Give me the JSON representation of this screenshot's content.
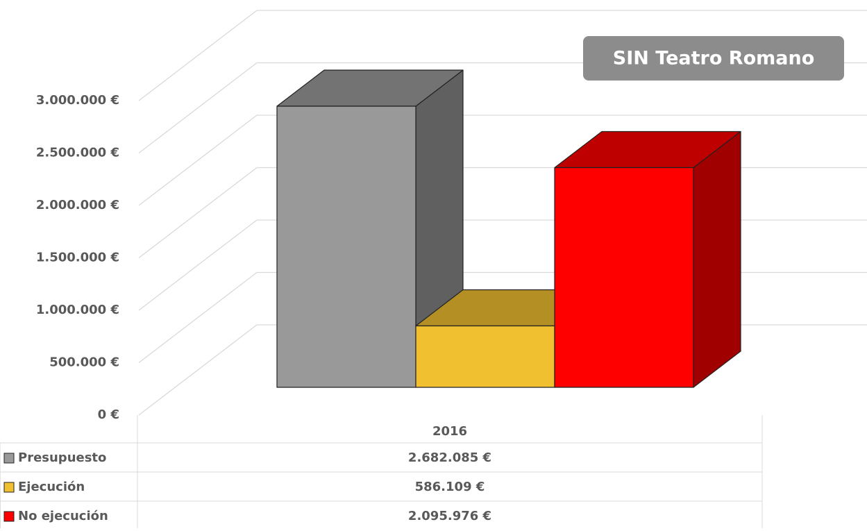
{
  "chart_data": {
    "type": "bar3d",
    "annotation": "SIN Teatro Romano",
    "categories": [
      "2016"
    ],
    "series": [
      {
        "name": "Presupuesto",
        "color": "#999999",
        "values": [
          2682085
        ],
        "value_labels": [
          "2.682.085 €"
        ]
      },
      {
        "name": "Ejecución",
        "color": "#f0c030",
        "values": [
          586109
        ],
        "value_labels": [
          "586.109 €"
        ]
      },
      {
        "name": "No ejecución",
        "color": "#ff0000",
        "values": [
          2095976
        ],
        "value_labels": [
          "2.095.976 €"
        ]
      }
    ],
    "ylim": [
      0,
      3000000
    ],
    "yticks": [
      {
        "value": 0,
        "label": "0 €"
      },
      {
        "value": 500000,
        "label": "500.000 €"
      },
      {
        "value": 1000000,
        "label": "1.000.000 €"
      },
      {
        "value": 1500000,
        "label": "1.500.000 €"
      },
      {
        "value": 2000000,
        "label": "2.000.000 €"
      },
      {
        "value": 2500000,
        "label": "2.500.000 €"
      },
      {
        "value": 3000000,
        "label": "3.000.000 €"
      }
    ],
    "grid": true,
    "data_table": true
  }
}
